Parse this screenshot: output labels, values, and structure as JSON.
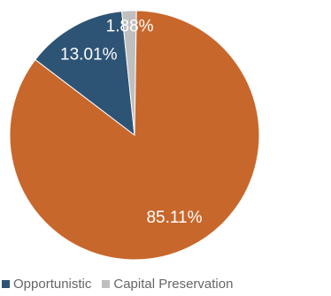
{
  "chart_data": {
    "type": "pie",
    "title": "",
    "slices": [
      {
        "label": "Opportunistic",
        "value": 13.01,
        "label_text": "13.01%",
        "color": "#2E5475"
      },
      {
        "label": "Capital Preservation",
        "value": 1.88,
        "label_text": "1.88%",
        "color": "#BFBFBF"
      },
      {
        "label": "",
        "value": 85.11,
        "label_text": "85.11%",
        "color": "#C8672B"
      }
    ],
    "legend": {
      "position": "bottom",
      "items": [
        {
          "label": "Opportunistic",
          "color": "#2E5475"
        },
        {
          "label": "Capital Preservation",
          "color": "#BFBFBF"
        }
      ]
    }
  }
}
